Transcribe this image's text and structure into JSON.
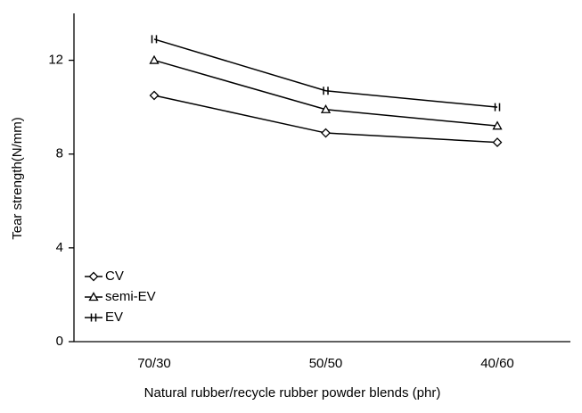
{
  "chart_data": {
    "type": "line",
    "xlabel": "Natural rubber/recycle rubber powder blends (phr)",
    "ylabel": "Tear strength(N/mm)",
    "categories": [
      "70/30",
      "50/50",
      "40/60"
    ],
    "series": [
      {
        "name": "CV",
        "color": "#000000",
        "marker": "diamond",
        "values": [
          10.5,
          8.9,
          8.5
        ]
      },
      {
        "name": "semi-EV",
        "color": "#000000",
        "marker": "triangle",
        "values": [
          12.0,
          9.9,
          9.2
        ]
      },
      {
        "name": "EV",
        "color": "#000000",
        "marker": "bars",
        "values": [
          12.9,
          10.7,
          10.0
        ]
      }
    ],
    "ylim": [
      0,
      14
    ],
    "yticks": [
      0,
      4,
      8,
      12
    ],
    "grid": false,
    "legend": "lower left"
  }
}
